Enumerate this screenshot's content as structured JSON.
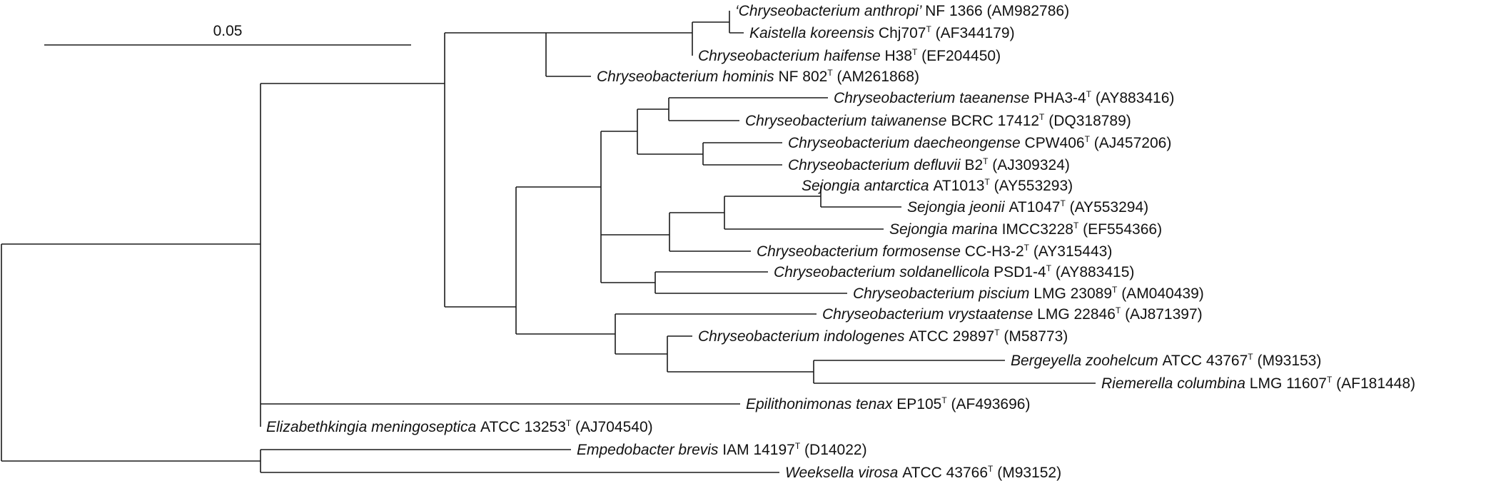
{
  "scale_bar": {
    "label": "0.05"
  },
  "taxa": [
    {
      "id": "anthropi",
      "name": "‘Chryseobacterium anthropi’",
      "strain": "NF 1366",
      "type": "",
      "accession": "(AM982786)"
    },
    {
      "id": "koreensis",
      "name": "Kaistella koreensis",
      "strain": "Chj707",
      "type": "T",
      "accession": "(AF344179)"
    },
    {
      "id": "haifense",
      "name": "Chryseobacterium haifense",
      "strain": "H38",
      "type": "T",
      "accession": "(EF204450)"
    },
    {
      "id": "hominis",
      "name": "Chryseobacterium hominis",
      "strain": "NF 802",
      "type": "T",
      "accession": "(AM261868)"
    },
    {
      "id": "taeanense",
      "name": "Chryseobacterium taeanense",
      "strain": "PHA3-4",
      "type": "T",
      "accession": "(AY883416)"
    },
    {
      "id": "taiwanense",
      "name": "Chryseobacterium taiwanense",
      "strain": "BCRC 17412",
      "type": "T",
      "accession": "(DQ318789)"
    },
    {
      "id": "daecheongense",
      "name": "Chryseobacterium daecheongense",
      "strain": "CPW406",
      "type": "T",
      "accession": "(AJ457206)"
    },
    {
      "id": "defluvii",
      "name": "Chryseobacterium defluvii",
      "strain": "B2",
      "type": "T",
      "accession": "(AJ309324)"
    },
    {
      "id": "antarctica",
      "name": "Sejongia antarctica",
      "strain": "AT1013",
      "type": "T",
      "accession": "(AY553293)"
    },
    {
      "id": "jeonii",
      "name": "Sejongia jeonii",
      "strain": "AT1047",
      "type": "T",
      "accession": "(AY553294)"
    },
    {
      "id": "marina",
      "name": "Sejongia marina",
      "strain": "IMCC3228",
      "type": "T",
      "accession": "(EF554366)"
    },
    {
      "id": "formosense",
      "name": "Chryseobacterium formosense",
      "strain": "CC-H3-2",
      "type": "T",
      "accession": "(AY315443)"
    },
    {
      "id": "soldanellicola",
      "name": "Chryseobacterium soldanellicola",
      "strain": "PSD1-4",
      "type": "T",
      "accession": "(AY883415)"
    },
    {
      "id": "piscium",
      "name": "Chryseobacterium piscium",
      "strain": "LMG 23089",
      "type": "T",
      "accession": "(AM040439)"
    },
    {
      "id": "vrystaatense",
      "name": "Chryseobacterium vrystaatense",
      "strain": "LMG 22846",
      "type": "T",
      "accession": "(AJ871397)"
    },
    {
      "id": "indologenes",
      "name": "Chryseobacterium indologenes",
      "strain": "ATCC 29897",
      "type": "T",
      "accession": "(M58773)"
    },
    {
      "id": "zoohelcum",
      "name": "Bergeyella zoohelcum",
      "strain": "ATCC 43767",
      "type": "T",
      "accession": "(M93153)"
    },
    {
      "id": "columbina",
      "name": "Riemerella columbina",
      "strain": "LMG 11607",
      "type": "T",
      "accession": "(AF181448)"
    },
    {
      "id": "tenax",
      "name": "Epilithonimonas tenax",
      "strain": "EP105",
      "type": "T",
      "accession": "(AF493696)"
    },
    {
      "id": "meningoseptica",
      "name": "Elizabethkingia meningoseptica",
      "strain": "ATCC 13253",
      "type": "T",
      "accession": "(AJ704540)"
    },
    {
      "id": "brevis",
      "name": "Empedobacter brevis",
      "strain": "IAM 14197",
      "type": "T",
      "accession": "(D14022)"
    },
    {
      "id": "virosa",
      "name": "Weeksella virosa",
      "strain": "ATCC 43766",
      "type": "T",
      "accession": "(M93152)"
    }
  ]
}
